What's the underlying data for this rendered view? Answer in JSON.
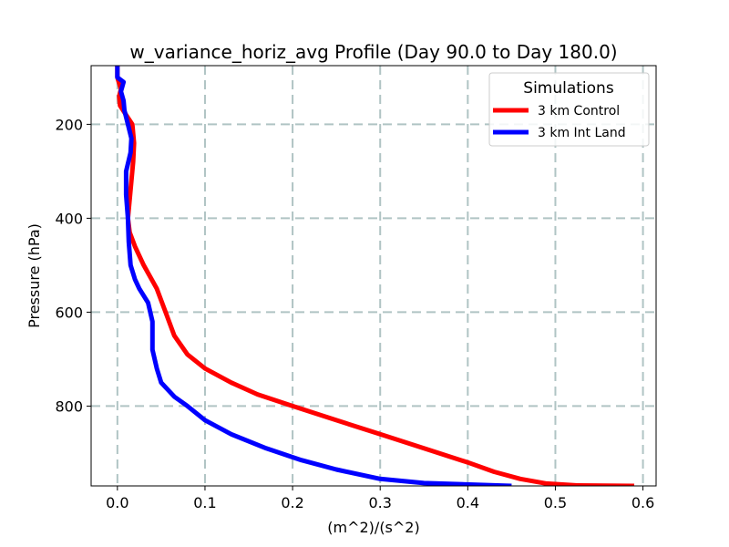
{
  "chart_data": {
    "type": "line",
    "title": "w_variance_horiz_avg Profile (Day 90.0 to Day 180.0)",
    "xlabel": "(m^2)/(s^2)",
    "ylabel": "Pressure (hPa)",
    "xlim": [
      -0.03,
      0.615
    ],
    "ylim": [
      970,
      75
    ],
    "y_inverted": true,
    "grid": true,
    "xticks": [
      0.0,
      0.1,
      0.2,
      0.3,
      0.4,
      0.5,
      0.6
    ],
    "xtick_labels": [
      "0.0",
      "0.1",
      "0.2",
      "0.3",
      "0.4",
      "0.5",
      "0.6"
    ],
    "yticks": [
      200,
      400,
      600,
      800
    ],
    "ytick_labels": [
      "200",
      "400",
      "600",
      "800"
    ],
    "legend": {
      "title": "Simulations",
      "placement": "top-right"
    },
    "series": [
      {
        "name": "3 km Control",
        "color": "#ff0000",
        "points": [
          [
            0.0,
            75
          ],
          [
            0.0,
            100
          ],
          [
            0.004,
            125
          ],
          [
            0.002,
            140
          ],
          [
            0.003,
            160
          ],
          [
            0.01,
            180
          ],
          [
            0.017,
            200
          ],
          [
            0.019,
            240
          ],
          [
            0.018,
            280
          ],
          [
            0.016,
            320
          ],
          [
            0.014,
            360
          ],
          [
            0.012,
            400
          ],
          [
            0.014,
            430
          ],
          [
            0.02,
            460
          ],
          [
            0.03,
            500
          ],
          [
            0.045,
            550
          ],
          [
            0.055,
            600
          ],
          [
            0.065,
            650
          ],
          [
            0.08,
            690
          ],
          [
            0.1,
            720
          ],
          [
            0.13,
            750
          ],
          [
            0.16,
            775
          ],
          [
            0.2,
            800
          ],
          [
            0.25,
            830
          ],
          [
            0.3,
            860
          ],
          [
            0.35,
            890
          ],
          [
            0.4,
            920
          ],
          [
            0.43,
            940
          ],
          [
            0.46,
            955
          ],
          [
            0.49,
            965
          ],
          [
            0.525,
            969
          ],
          [
            0.59,
            970
          ]
        ]
      },
      {
        "name": "3 km Int Land",
        "color": "#0000ff",
        "points": [
          [
            0.0,
            75
          ],
          [
            0.0,
            100
          ],
          [
            0.007,
            110
          ],
          [
            0.004,
            130
          ],
          [
            0.007,
            150
          ],
          [
            0.008,
            170
          ],
          [
            0.012,
            200
          ],
          [
            0.016,
            230
          ],
          [
            0.015,
            260
          ],
          [
            0.01,
            300
          ],
          [
            0.01,
            350
          ],
          [
            0.012,
            400
          ],
          [
            0.013,
            450
          ],
          [
            0.015,
            500
          ],
          [
            0.02,
            530
          ],
          [
            0.025,
            550
          ],
          [
            0.035,
            580
          ],
          [
            0.04,
            620
          ],
          [
            0.04,
            680
          ],
          [
            0.045,
            720
          ],
          [
            0.05,
            750
          ],
          [
            0.065,
            780
          ],
          [
            0.08,
            800
          ],
          [
            0.1,
            830
          ],
          [
            0.13,
            860
          ],
          [
            0.17,
            890
          ],
          [
            0.21,
            915
          ],
          [
            0.25,
            935
          ],
          [
            0.3,
            955
          ],
          [
            0.35,
            964
          ],
          [
            0.45,
            970
          ]
        ]
      }
    ]
  }
}
